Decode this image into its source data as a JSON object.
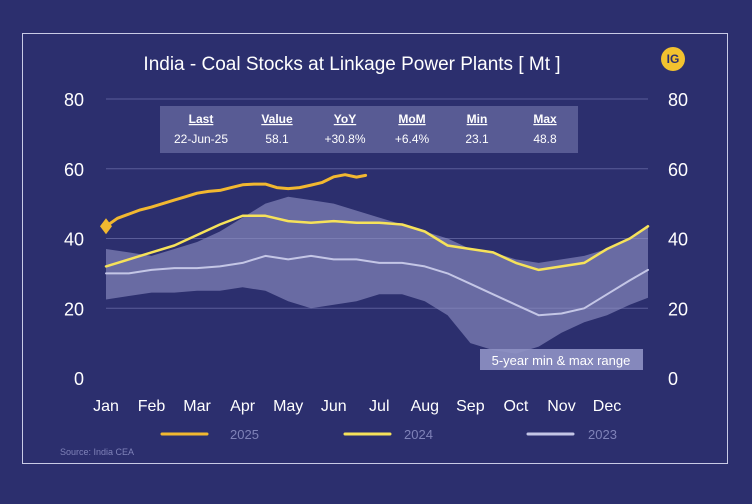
{
  "colors": {
    "background": "#2c2f6e",
    "band": "#8f92c4",
    "line_2025": "#f2b830",
    "line_2024": "#f6e25a",
    "line_2023": "#c4c6e6",
    "text": "#ffffff",
    "muted": "#7f82b8",
    "logo": "#f2c22f"
  },
  "logo_text": "IG",
  "source": "Source: India CEA",
  "band_label": "5-year min & max range",
  "stats": {
    "headers": [
      "Last",
      "Value",
      "YoY",
      "MoM",
      "Min",
      "Max"
    ],
    "values": [
      "22-Jun-25",
      "58.1",
      "+30.8%",
      "+6.4%",
      "23.1",
      "48.8"
    ]
  },
  "chart_data": {
    "type": "line",
    "title": "India - Coal Stocks at Linkage Power Plants [ Mt ]",
    "xlabel": "",
    "ylabel": "",
    "x_ticks": [
      "Jan",
      "Feb",
      "Mar",
      "Apr",
      "May",
      "Jun",
      "Jul",
      "Aug",
      "Sep",
      "Oct",
      "Nov",
      "Dec"
    ],
    "ylim": [
      0,
      80
    ],
    "y_ticks": [
      0,
      20,
      40,
      60,
      80
    ],
    "legend_position": "bottom",
    "series": [
      {
        "name": "2025",
        "x": [
          0,
          0.25,
          0.5,
          0.75,
          1,
          1.25,
          1.5,
          1.75,
          2,
          2.25,
          2.5,
          2.75,
          3,
          3.25,
          3.5,
          3.75,
          4,
          4.25,
          4.5,
          4.75,
          5,
          5.25,
          5.5,
          5.7
        ],
        "values": [
          43.5,
          45.8,
          47,
          48.2,
          49,
          50,
          51,
          52,
          53,
          53.5,
          53.8,
          54.6,
          55.4,
          55.6,
          55.6,
          54.6,
          54.3,
          54.6,
          55.3,
          56.1,
          57.7,
          58.3,
          57.6,
          58.1
        ]
      },
      {
        "name": "2024",
        "x": [
          0,
          0.5,
          1,
          1.5,
          2,
          2.5,
          3,
          3.5,
          4,
          4.5,
          5,
          5.5,
          6,
          6.5,
          7,
          7.5,
          8,
          8.5,
          9,
          9.5,
          10,
          10.5,
          11,
          11.5,
          11.9
        ],
        "values": [
          32,
          34,
          36,
          38,
          41,
          44,
          46.5,
          46.5,
          45,
          44.5,
          45,
          44.5,
          44.5,
          44,
          42,
          38,
          37,
          36,
          33,
          31,
          32,
          33,
          37,
          40,
          43.5
        ]
      },
      {
        "name": "2023",
        "x": [
          0,
          0.5,
          1,
          1.5,
          2,
          2.5,
          3,
          3.5,
          4,
          4.5,
          5,
          5.5,
          6,
          6.5,
          7,
          7.5,
          8,
          8.5,
          9,
          9.5,
          10,
          10.5,
          11,
          11.5,
          11.9
        ],
        "values": [
          30,
          30,
          31,
          31.5,
          31.5,
          32,
          33,
          35,
          34,
          35,
          34,
          34,
          33,
          33,
          32,
          30,
          27,
          24,
          21,
          18,
          18.5,
          20,
          24,
          28,
          31
        ]
      }
    ],
    "range_band": {
      "name": "5-year min & max range",
      "x": [
        0,
        0.5,
        1,
        1.5,
        2,
        2.5,
        3,
        3.5,
        4,
        4.5,
        5,
        5.5,
        6,
        6.5,
        7,
        7.5,
        8,
        8.5,
        9,
        9.5,
        10,
        10.5,
        11,
        11.5,
        11.9
      ],
      "min": [
        22.5,
        23.5,
        24.5,
        24.5,
        25,
        25,
        26,
        25,
        22,
        20,
        21,
        22,
        24,
        24,
        22,
        18,
        10,
        8,
        7,
        9,
        13,
        16,
        18,
        21,
        23
      ],
      "max": [
        37,
        36,
        35,
        37,
        39,
        42,
        46,
        50,
        52,
        51,
        50,
        48,
        46,
        44,
        42,
        40,
        37,
        36,
        34,
        33,
        34,
        35,
        37,
        40,
        44
      ]
    }
  }
}
